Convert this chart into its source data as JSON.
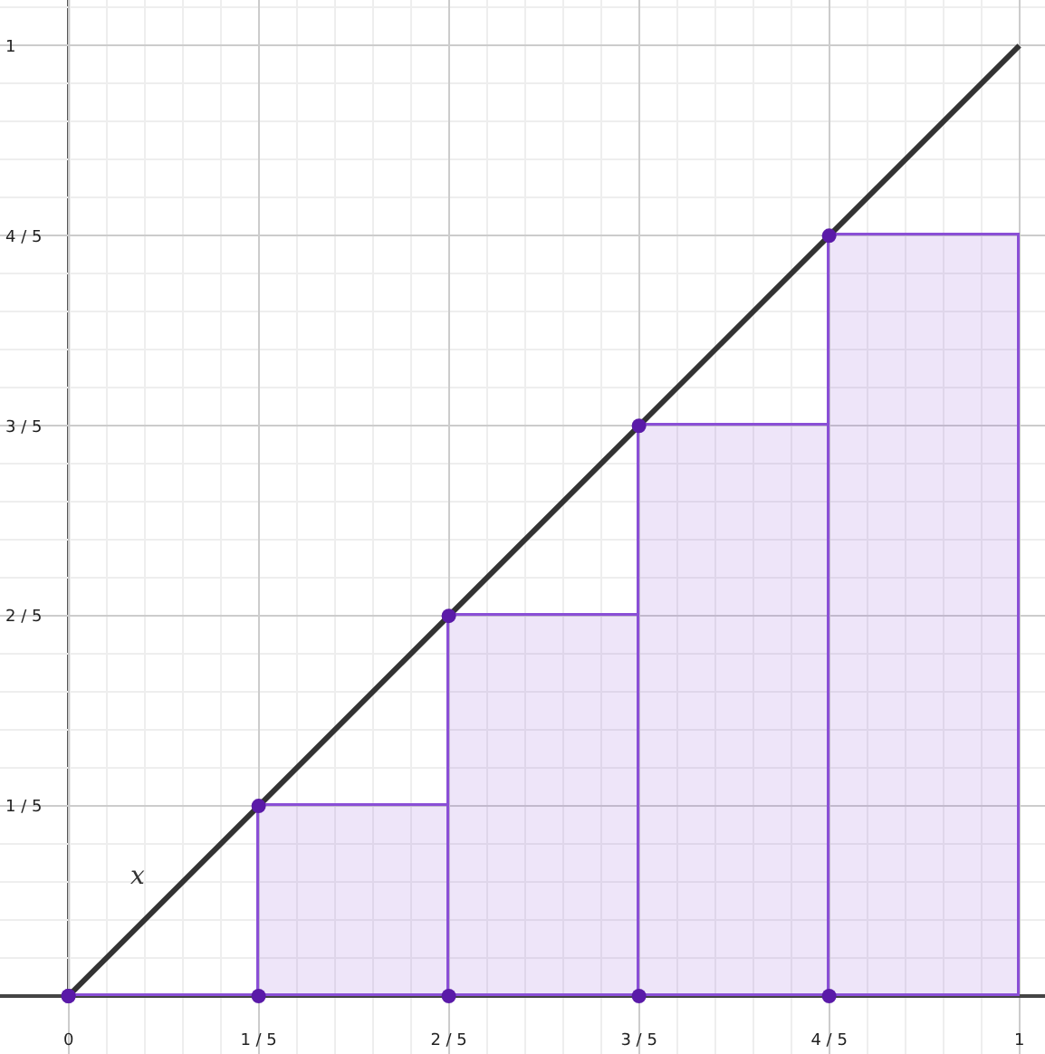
{
  "chart_data": {
    "type": "histogram",
    "bins": [
      0,
      0.2,
      0.4,
      0.6,
      0.8,
      1
    ],
    "values": [
      0,
      0.2,
      0.4,
      0.6,
      0.8
    ],
    "color": "#8a4fd6",
    "series": [
      {
        "type": "line",
        "x": [
          0,
          1
        ],
        "values": [
          0,
          1
        ],
        "color": "#333333",
        "marker": "none"
      },
      {
        "type": "scatter",
        "x": [
          0,
          0.2,
          0.4,
          0.6,
          0.8
        ],
        "values": [
          0,
          0.2,
          0.4,
          0.6,
          0.8
        ],
        "color": "#5a1aa8",
        "marker": "circle"
      },
      {
        "type": "scatter",
        "x": [
          0,
          0.2,
          0.4,
          0.6,
          0.8
        ],
        "values": [
          0,
          0,
          0,
          0,
          0
        ],
        "color": "#5a1aa8",
        "marker": "circle"
      }
    ],
    "annotations": [
      "x"
    ],
    "xlim": [
      -0.072,
      1.027
    ],
    "ylim": [
      -0.061,
      1.048
    ],
    "xticks": [
      0,
      {
        "value": 0.2,
        "label": "1 / 5"
      },
      {
        "value": 0.4,
        "label": "2 / 5"
      },
      {
        "value": 0.6,
        "label": "3 / 5"
      },
      {
        "value": 0.8,
        "label": "4 / 5"
      },
      1
    ],
    "yticks": [
      {
        "value": 0.2,
        "label": "1 / 5"
      },
      {
        "value": 0.4,
        "label": "2 / 5"
      },
      {
        "value": 0.6,
        "label": "3 / 5"
      },
      {
        "value": 0.8,
        "label": "4 / 5"
      },
      1
    ],
    "grid": true,
    "line_style": "solid"
  }
}
